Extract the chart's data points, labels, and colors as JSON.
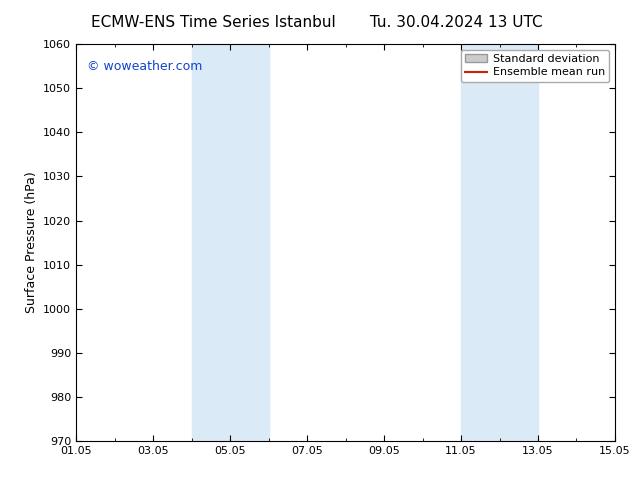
{
  "title_left": "ECMW-ENS Time Series Istanbul",
  "title_right": "Tu. 30.04.2024 13 UTC",
  "ylabel": "Surface Pressure (hPa)",
  "xlim": [
    0,
    14
  ],
  "ylim": [
    970,
    1060
  ],
  "yticks": [
    970,
    980,
    990,
    1000,
    1010,
    1020,
    1030,
    1040,
    1050,
    1060
  ],
  "xtick_labels": [
    "01.05",
    "03.05",
    "05.05",
    "07.05",
    "09.05",
    "11.05",
    "13.05",
    "15.05"
  ],
  "xtick_positions": [
    0,
    2,
    4,
    6,
    8,
    10,
    12,
    14
  ],
  "shaded_regions": [
    {
      "x_start": 3.0,
      "x_end": 5.0
    },
    {
      "x_start": 10.0,
      "x_end": 12.0
    }
  ],
  "shaded_color": "#daeaf7",
  "background_color": "#ffffff",
  "watermark_text": "© woweather.com",
  "watermark_color": "#1144cc",
  "legend_items": [
    {
      "label": "Standard deviation",
      "patch_color": "#cccccc",
      "edge_color": "#999999"
    },
    {
      "label": "Ensemble mean run",
      "line_color": "#cc2200"
    }
  ],
  "title_fontsize": 11,
  "axis_label_fontsize": 9,
  "tick_fontsize": 8,
  "watermark_fontsize": 9,
  "legend_fontsize": 8
}
